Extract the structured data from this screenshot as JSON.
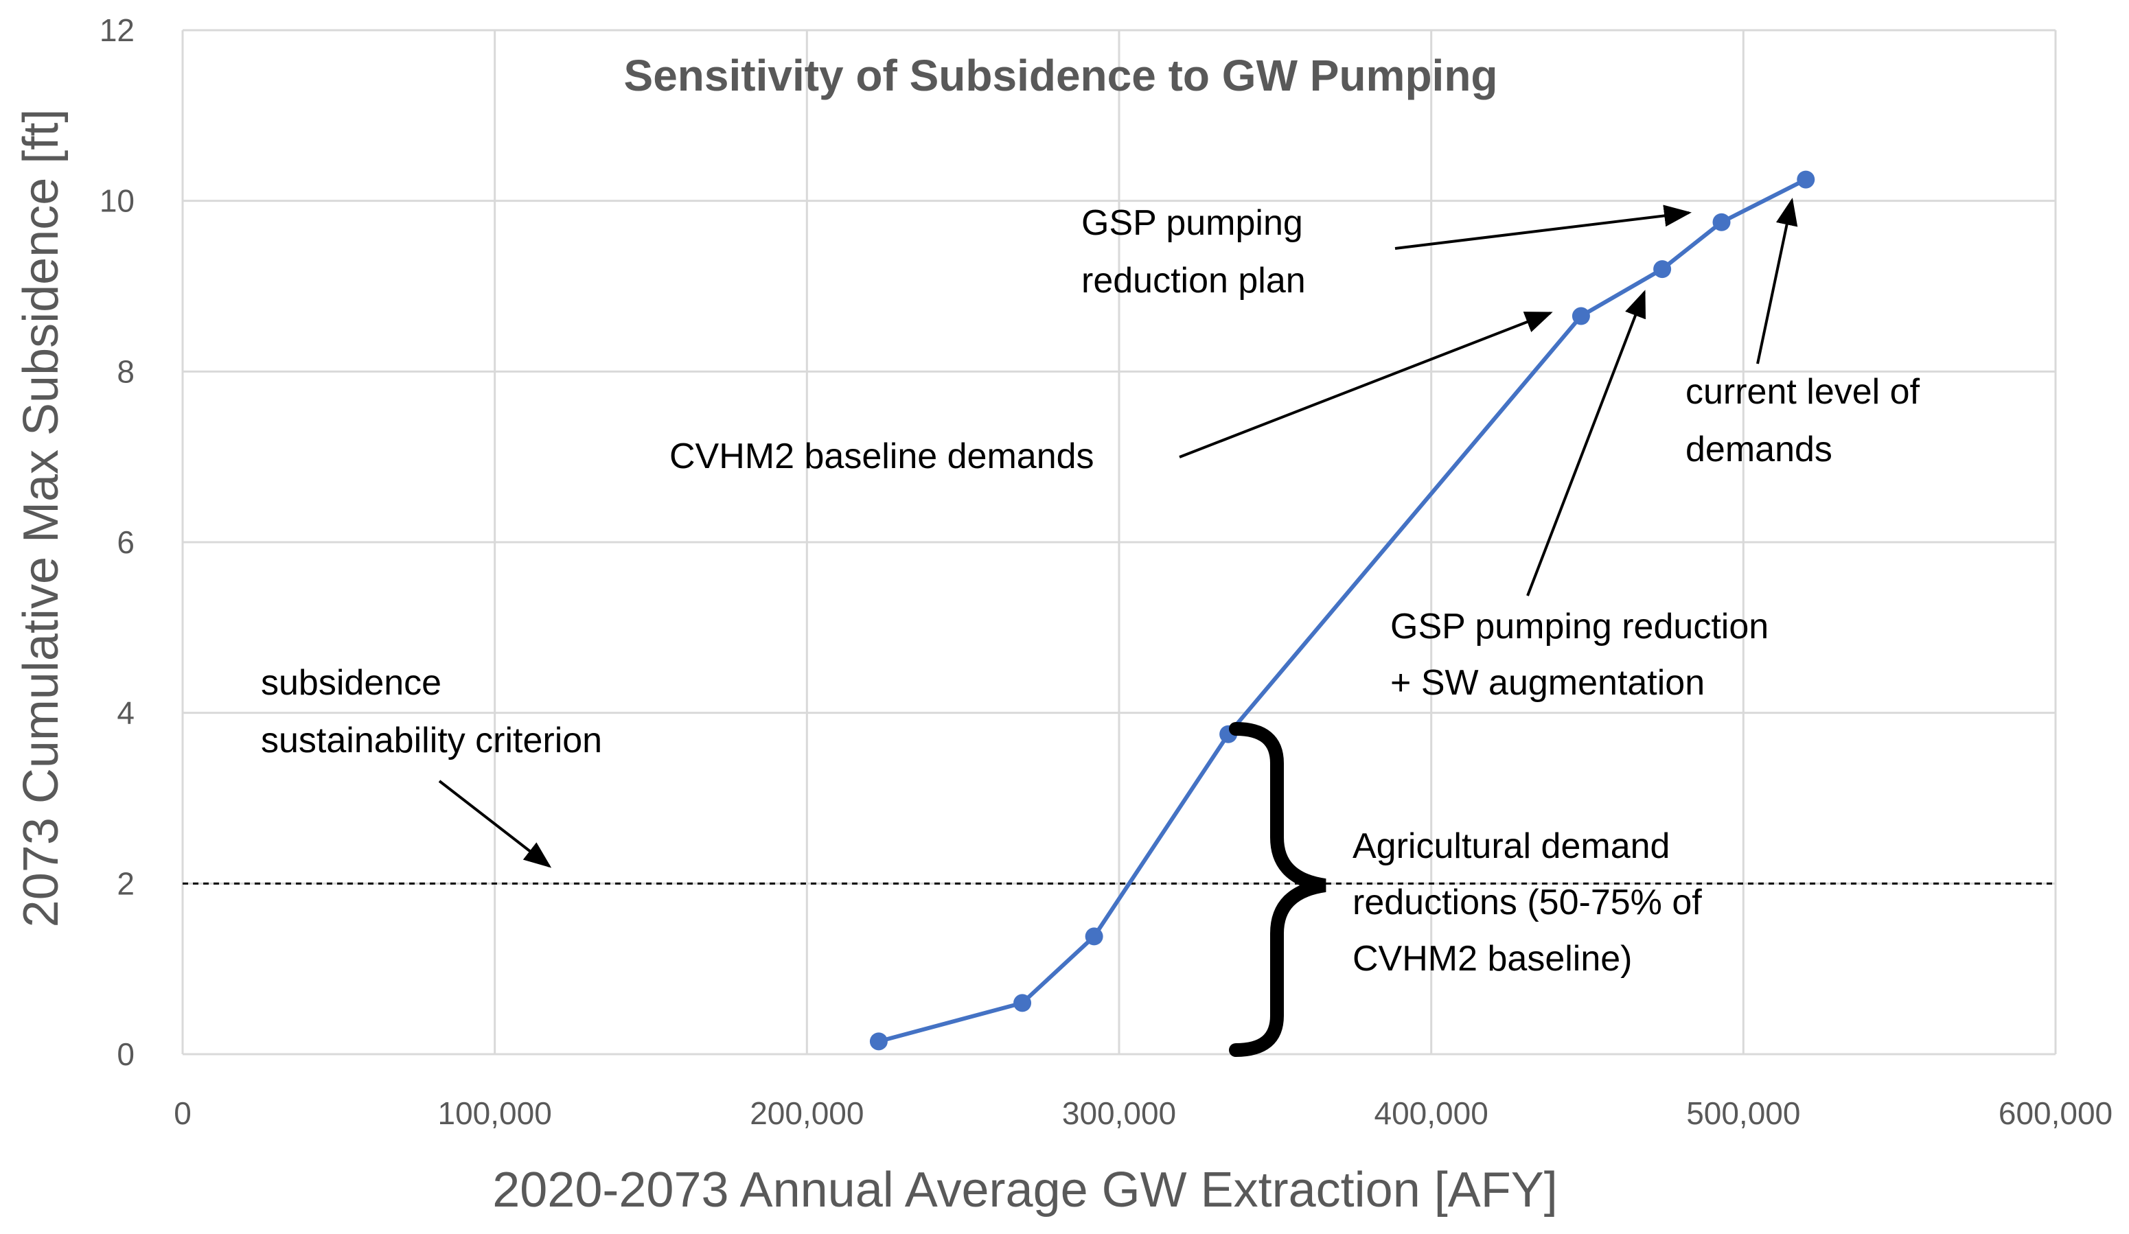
{
  "chart_data": {
    "type": "line",
    "title": "Sensitivity of Subsidence to GW Pumping",
    "xlabel": "2020-2073 Annual Average GW Extraction [AFY]",
    "ylabel": "2073 Cumulative Max Subsidence [ft]",
    "xlim": [
      0,
      600000
    ],
    "ylim": [
      0,
      12
    ],
    "x_ticks": [
      0,
      100000,
      200000,
      300000,
      400000,
      500000,
      600000
    ],
    "x_tick_labels": [
      "0",
      "100,000",
      "200,000",
      "300,000",
      "400,000",
      "500,000",
      "600,000"
    ],
    "y_ticks": [
      0,
      2,
      4,
      6,
      8,
      10,
      12
    ],
    "y_tick_labels": [
      "0",
      "2",
      "4",
      "6",
      "8",
      "10",
      "12"
    ],
    "grid": true,
    "series": [
      {
        "color": "#4472c4",
        "points": [
          {
            "x": 223000,
            "y": 0.15
          },
          {
            "x": 269000,
            "y": 0.6
          },
          {
            "x": 292000,
            "y": 1.38
          },
          {
            "x": 335000,
            "y": 3.75
          },
          {
            "x": 448000,
            "y": 8.65
          },
          {
            "x": 474000,
            "y": 9.2
          },
          {
            "x": 493000,
            "y": 9.75
          },
          {
            "x": 520000,
            "y": 10.25
          }
        ]
      }
    ],
    "reference_line": {
      "y": 2,
      "style": "dashed",
      "color": "#000000"
    },
    "annotations": {
      "criterion": [
        "subsidence",
        "sustainability criterion"
      ],
      "cvhm2": [
        "CVHM2 baseline demands"
      ],
      "gsp_plan": [
        "GSP pumping",
        "reduction plan"
      ],
      "current": [
        "current level of",
        "demands"
      ],
      "gsp_sw": [
        "GSP pumping reduction",
        "+ SW augmentation"
      ],
      "ag": [
        "Agricultural demand",
        "reductions (50-75% of",
        "CVHM2 baseline)"
      ]
    }
  }
}
